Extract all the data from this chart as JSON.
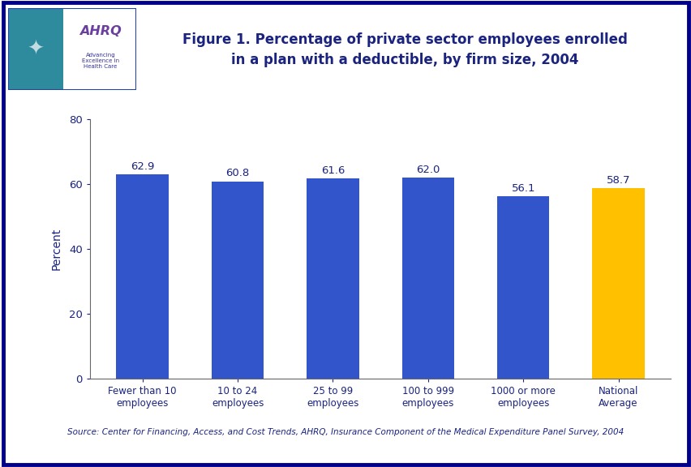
{
  "categories": [
    "Fewer than 10\nemployees",
    "10 to 24\nemployees",
    "25 to 99\nemployees",
    "100 to 999\nemployees",
    "1000 or more\nemployees",
    "National\nAverage"
  ],
  "values": [
    62.9,
    60.8,
    61.6,
    62.0,
    56.1,
    58.7
  ],
  "bar_colors": [
    "#3355CC",
    "#3355CC",
    "#3355CC",
    "#3355CC",
    "#3355CC",
    "#FFC000"
  ],
  "title_line1": "Figure 1. Percentage of private sector employees enrolled",
  "title_line2": "in a plan with a deductible, by firm size, 2004",
  "ylabel": "Percent",
  "ylim": [
    0,
    80
  ],
  "yticks": [
    0,
    20,
    40,
    60,
    80
  ],
  "source_text": "Source: Center for Financing, Access, and Cost Trends, AHRQ, Insurance Component of the Medical Expenditure Panel Survey, 2004",
  "title_color": "#1A237E",
  "bar_label_color": "#1A237E",
  "ylabel_color": "#1A237E",
  "tick_color": "#1A237E",
  "source_color": "#1A237E",
  "bg_color": "#FFFFFF",
  "border_color": "#00008B",
  "header_line_color": "#00008B",
  "plot_bg_color": "#FFFFFF",
  "header_bg_color": "#FFFFFF"
}
